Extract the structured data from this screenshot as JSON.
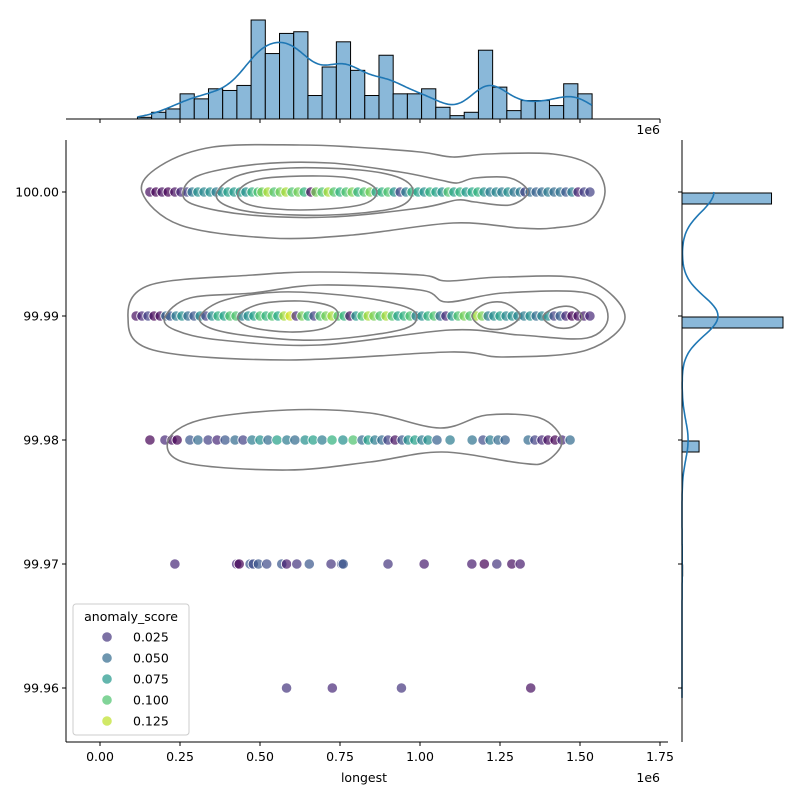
{
  "chart_data": {
    "type": "scatter",
    "xlabel": "longest",
    "ylabel": "",
    "x_offset_label": "1e6",
    "top_offset_label": "1e6",
    "xlim": [
      -0.106,
      1.775
    ],
    "ylim": [
      99.9557,
      100.0042
    ],
    "x_ticks": [
      "0.00",
      "0.25",
      "0.50",
      "0.75",
      "1.00",
      "1.25",
      "1.50",
      "1.75"
    ],
    "x_tick_values": [
      0,
      0.25,
      0.5,
      0.75,
      1.0,
      1.25,
      1.5,
      1.75
    ],
    "y_ticks": [
      "100.00",
      "99.99",
      "99.98",
      "99.97",
      "99.96"
    ],
    "y_tick_values": [
      100.0,
      99.99,
      99.98,
      99.97,
      99.96
    ],
    "grid": false,
    "hue": {
      "name": "anomaly_score",
      "palette": "viridis",
      "range": [
        0.005,
        0.138
      ],
      "alpha": 0.7
    },
    "legend": {
      "title": "anomaly_score",
      "placement": "lower-left",
      "entries": [
        {
          "label": "0.025",
          "value": 0.025
        },
        {
          "label": "0.050",
          "value": 0.05
        },
        {
          "label": "0.075",
          "value": 0.075
        },
        {
          "label": "0.100",
          "value": 0.1
        },
        {
          "label": "0.125",
          "value": 0.125
        }
      ]
    },
    "rows": [
      {
        "y": 100.0,
        "points": [
          [
            0.156,
            0.01
          ],
          [
            0.175,
            0.005
          ],
          [
            0.194,
            0.01
          ],
          [
            0.213,
            0.005
          ],
          [
            0.234,
            0.01
          ],
          [
            0.253,
            0.02
          ],
          [
            0.272,
            0.03
          ],
          [
            0.288,
            0.06
          ],
          [
            0.306,
            0.07
          ],
          [
            0.325,
            0.065
          ],
          [
            0.344,
            0.07
          ],
          [
            0.363,
            0.06
          ],
          [
            0.381,
            0.07
          ],
          [
            0.4,
            0.08
          ],
          [
            0.419,
            0.075
          ],
          [
            0.438,
            0.08
          ],
          [
            0.456,
            0.07
          ],
          [
            0.475,
            0.09
          ],
          [
            0.494,
            0.1
          ],
          [
            0.506,
            0.11
          ],
          [
            0.525,
            0.12
          ],
          [
            0.544,
            0.1
          ],
          [
            0.563,
            0.11
          ],
          [
            0.581,
            0.12
          ],
          [
            0.6,
            0.1
          ],
          [
            0.619,
            0.11
          ],
          [
            0.638,
            0.09
          ],
          [
            0.659,
            0.0
          ],
          [
            0.675,
            0.11
          ],
          [
            0.694,
            0.1
          ],
          [
            0.713,
            0.12
          ],
          [
            0.731,
            0.1
          ],
          [
            0.75,
            0.09
          ],
          [
            0.769,
            0.1
          ],
          [
            0.788,
            0.11
          ],
          [
            0.806,
            0.09
          ],
          [
            0.825,
            0.1
          ],
          [
            0.844,
            0.11
          ],
          [
            0.863,
            0.08
          ],
          [
            0.881,
            0.09
          ],
          [
            0.9,
            0.1
          ],
          [
            0.919,
            0.07
          ],
          [
            0.938,
            0.03
          ],
          [
            0.956,
            0.06
          ],
          [
            0.975,
            0.09
          ],
          [
            0.994,
            0.08
          ],
          [
            1.013,
            0.07
          ],
          [
            1.031,
            0.09
          ],
          [
            1.05,
            0.08
          ],
          [
            1.069,
            0.07
          ],
          [
            1.088,
            0.1
          ],
          [
            1.106,
            0.08
          ],
          [
            1.125,
            0.09
          ],
          [
            1.144,
            0.075
          ],
          [
            1.163,
            0.085
          ],
          [
            1.181,
            0.09
          ],
          [
            1.2,
            0.07
          ],
          [
            1.219,
            0.06
          ],
          [
            1.238,
            0.065
          ],
          [
            1.256,
            0.06
          ],
          [
            1.275,
            0.07
          ],
          [
            1.294,
            0.055
          ],
          [
            1.313,
            0.06
          ],
          [
            1.328,
            0.03
          ],
          [
            1.344,
            0.05
          ],
          [
            1.363,
            0.045
          ],
          [
            1.381,
            0.05
          ],
          [
            1.4,
            0.06
          ],
          [
            1.419,
            0.05
          ],
          [
            1.438,
            0.055
          ],
          [
            1.456,
            0.04
          ],
          [
            1.475,
            0.06
          ],
          [
            1.494,
            0.015
          ],
          [
            1.513,
            0.03
          ],
          [
            1.531,
            0.03
          ]
        ]
      },
      {
        "y": 99.99,
        "points": [
          [
            0.113,
            0.01
          ],
          [
            0.131,
            0.02
          ],
          [
            0.15,
            0.03
          ],
          [
            0.169,
            0.005
          ],
          [
            0.188,
            0.01
          ],
          [
            0.206,
            0.05
          ],
          [
            0.219,
            0.04
          ],
          [
            0.238,
            0.06
          ],
          [
            0.256,
            0.07
          ],
          [
            0.275,
            0.05
          ],
          [
            0.294,
            0.04
          ],
          [
            0.313,
            0.07
          ],
          [
            0.331,
            0.03
          ],
          [
            0.35,
            0.07
          ],
          [
            0.369,
            0.09
          ],
          [
            0.388,
            0.08
          ],
          [
            0.406,
            0.1
          ],
          [
            0.425,
            0.1
          ],
          [
            0.444,
            0.06
          ],
          [
            0.463,
            0.07
          ],
          [
            0.481,
            0.08
          ],
          [
            0.5,
            0.1
          ],
          [
            0.519,
            0.09
          ],
          [
            0.538,
            0.1
          ],
          [
            0.556,
            0.085
          ],
          [
            0.575,
            0.12
          ],
          [
            0.594,
            0.13
          ],
          [
            0.613,
            0.02
          ],
          [
            0.631,
            0.11
          ],
          [
            0.65,
            0.09
          ],
          [
            0.669,
            0.03
          ],
          [
            0.688,
            0.1
          ],
          [
            0.706,
            0.11
          ],
          [
            0.725,
            0.12
          ],
          [
            0.744,
            0.1
          ],
          [
            0.763,
            0.09
          ],
          [
            0.781,
            0.01
          ],
          [
            0.8,
            0.075
          ],
          [
            0.819,
            0.1
          ],
          [
            0.838,
            0.12
          ],
          [
            0.856,
            0.11
          ],
          [
            0.875,
            0.1
          ],
          [
            0.894,
            0.12
          ],
          [
            0.913,
            0.1
          ],
          [
            0.931,
            0.08
          ],
          [
            0.95,
            0.09
          ],
          [
            0.969,
            0.1
          ],
          [
            0.988,
            0.06
          ],
          [
            1.006,
            0.07
          ],
          [
            1.025,
            0.09
          ],
          [
            1.044,
            0.1
          ],
          [
            1.063,
            0.05
          ],
          [
            1.081,
            0.02
          ],
          [
            1.1,
            0.075
          ],
          [
            1.119,
            0.1
          ],
          [
            1.138,
            0.11
          ],
          [
            1.156,
            0.1
          ],
          [
            1.175,
            0.12
          ],
          [
            1.194,
            0.11
          ],
          [
            1.213,
            0.06
          ],
          [
            1.231,
            0.07
          ],
          [
            1.25,
            0.08
          ],
          [
            1.269,
            0.065
          ],
          [
            1.288,
            0.07
          ],
          [
            1.306,
            0.065
          ],
          [
            1.325,
            0.06
          ],
          [
            1.344,
            0.07
          ],
          [
            1.363,
            0.05
          ],
          [
            1.381,
            0.065
          ],
          [
            1.4,
            0.07
          ],
          [
            1.419,
            0.03
          ],
          [
            1.438,
            0.045
          ],
          [
            1.456,
            0.02
          ],
          [
            1.475,
            0.005
          ],
          [
            1.494,
            0.01
          ],
          [
            1.513,
            0.015
          ],
          [
            1.531,
            0.02
          ]
        ]
      },
      {
        "y": 99.98,
        "points": [
          [
            0.156,
            0.005
          ],
          [
            0.203,
            0.02
          ],
          [
            0.225,
            0.01
          ],
          [
            0.241,
            0.005
          ],
          [
            0.281,
            0.04
          ],
          [
            0.306,
            0.05
          ],
          [
            0.338,
            0.03
          ],
          [
            0.366,
            0.02
          ],
          [
            0.391,
            0.04
          ],
          [
            0.422,
            0.05
          ],
          [
            0.447,
            0.03
          ],
          [
            0.475,
            0.06
          ],
          [
            0.5,
            0.07
          ],
          [
            0.525,
            0.05
          ],
          [
            0.553,
            0.08
          ],
          [
            0.584,
            0.06
          ],
          [
            0.609,
            0.05
          ],
          [
            0.641,
            0.07
          ],
          [
            0.666,
            0.08
          ],
          [
            0.694,
            0.06
          ],
          [
            0.725,
            0.09
          ],
          [
            0.759,
            0.07
          ],
          [
            0.791,
            0.1
          ],
          [
            0.819,
            0.05
          ],
          [
            0.838,
            0.08
          ],
          [
            0.859,
            0.06
          ],
          [
            0.881,
            0.05
          ],
          [
            0.9,
            0.03
          ],
          [
            0.922,
            0.01
          ],
          [
            0.944,
            0.04
          ],
          [
            0.963,
            0.07
          ],
          [
            0.984,
            0.08
          ],
          [
            1.006,
            0.06
          ],
          [
            1.025,
            0.07
          ],
          [
            1.053,
            0.045
          ],
          [
            1.094,
            0.06
          ],
          [
            1.163,
            0.055
          ],
          [
            1.197,
            0.035
          ],
          [
            1.219,
            0.06
          ],
          [
            1.244,
            0.05
          ],
          [
            1.266,
            0.045
          ],
          [
            1.338,
            0.05
          ],
          [
            1.359,
            0.03
          ],
          [
            1.381,
            0.02
          ],
          [
            1.4,
            0.01
          ],
          [
            1.422,
            0.005
          ],
          [
            1.444,
            0.02
          ],
          [
            1.469,
            0.05
          ]
        ]
      },
      {
        "y": 99.97,
        "points": [
          [
            0.234,
            0.02
          ],
          [
            0.427,
            0.02
          ],
          [
            0.435,
            0.005
          ],
          [
            0.469,
            0.04
          ],
          [
            0.479,
            0.035
          ],
          [
            0.495,
            0.04
          ],
          [
            0.521,
            0.035
          ],
          [
            0.568,
            0.04
          ],
          [
            0.583,
            0.015
          ],
          [
            0.615,
            0.025
          ],
          [
            0.654,
            0.04
          ],
          [
            0.722,
            0.025
          ],
          [
            0.755,
            0.035
          ],
          [
            0.76,
            0.04
          ],
          [
            0.9,
            0.025
          ],
          [
            1.013,
            0.015
          ],
          [
            1.162,
            0.015
          ],
          [
            1.201,
            0.0
          ],
          [
            1.24,
            0.025
          ],
          [
            1.287,
            0.01
          ],
          [
            1.313,
            0.015
          ]
        ]
      },
      {
        "y": 99.96,
        "points": [
          [
            0.583,
            0.025
          ],
          [
            0.726,
            0.02
          ],
          [
            0.942,
            0.025
          ],
          [
            1.346,
            0.01
          ]
        ]
      }
    ],
    "marginal_x": {
      "type": "histogram",
      "bin_start": 0.117,
      "bin_width": 0.0444,
      "counts": [
        1,
        4,
        6,
        15,
        12,
        18,
        17,
        20,
        59,
        39,
        51,
        52,
        14,
        31,
        46,
        29,
        14,
        38,
        15,
        15,
        18,
        7,
        2,
        4,
        41,
        19,
        5,
        11,
        11,
        8,
        21,
        15
      ],
      "kde": true,
      "color": "#1f77b4",
      "bar_color": "#8ab8d9"
    },
    "marginal_y": {
      "type": "histogram",
      "bins": [
        {
          "y": 100.0,
          "count": 273
        },
        {
          "y": 99.99,
          "count": 308
        },
        {
          "y": 99.98,
          "count": 52
        },
        {
          "y": 99.97,
          "count": 2
        }
      ],
      "kde": true
    }
  }
}
